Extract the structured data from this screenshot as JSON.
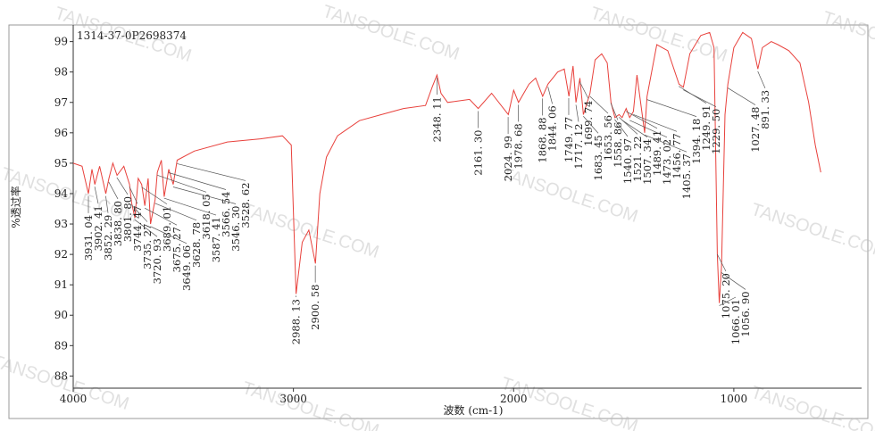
{
  "chart_data": {
    "type": "line",
    "title": "1314-37-0P2698374",
    "x_label": "波数 (cm-1)",
    "y_label": "%透过率",
    "watermark": "TANSOOLE.COM",
    "color": "#e8413c",
    "xlim": [
      4000,
      440
    ],
    "ylim": [
      87.6,
      99.4
    ],
    "xticks": [
      4000,
      3000,
      2000,
      1000
    ],
    "yticks": [
      88,
      89,
      90,
      91,
      92,
      93,
      94,
      95,
      96,
      97,
      98,
      99
    ],
    "x": [
      4000,
      3960,
      3931,
      3915,
      3902,
      3880,
      3852,
      3838,
      3820,
      3801,
      3770,
      3744,
      3735,
      3720,
      3705,
      3689,
      3675,
      3660,
      3649,
      3628,
      3618,
      3600,
      3587,
      3566,
      3546,
      3528,
      3450,
      3300,
      3150,
      3050,
      3010,
      2988,
      2960,
      2930,
      2900,
      2880,
      2850,
      2800,
      2700,
      2600,
      2500,
      2400,
      2370,
      2348,
      2330,
      2300,
      2200,
      2161,
      2100,
      2024,
      2000,
      1978,
      1930,
      1900,
      1868,
      1844,
      1800,
      1770,
      1749,
      1730,
      1717,
      1699,
      1683,
      1653,
      1630,
      1600,
      1575,
      1558,
      1540,
      1521,
      1507,
      1489,
      1473,
      1456,
      1440,
      1405,
      1394,
      1350,
      1300,
      1249,
      1229,
      1200,
      1150,
      1110,
      1090,
      1075,
      1066,
      1056,
      1040,
      1027,
      1000,
      960,
      920,
      891,
      870,
      830,
      800,
      750,
      700,
      660,
      630,
      605
    ],
    "values": [
      95.0,
      94.9,
      94.0,
      94.8,
      94.3,
      94.9,
      94.0,
      94.5,
      95.0,
      94.6,
      94.9,
      94.3,
      93.7,
      93.2,
      94.5,
      94.3,
      93.6,
      94.5,
      93.0,
      93.8,
      94.7,
      95.1,
      93.9,
      94.8,
      94.3,
      95.1,
      95.4,
      95.7,
      95.8,
      95.9,
      95.6,
      90.7,
      92.4,
      92.8,
      91.7,
      94.0,
      95.2,
      95.9,
      96.4,
      96.6,
      96.8,
      96.9,
      97.5,
      97.9,
      97.3,
      97.0,
      97.1,
      96.8,
      97.3,
      96.6,
      97.4,
      97.0,
      97.6,
      97.8,
      97.2,
      97.6,
      98.0,
      98.1,
      97.2,
      98.2,
      97.0,
      97.8,
      96.6,
      97.3,
      98.4,
      98.6,
      98.3,
      97.0,
      96.5,
      96.6,
      96.5,
      96.8,
      96.5,
      96.7,
      97.9,
      96.0,
      97.2,
      98.9,
      98.7,
      97.6,
      97.5,
      98.6,
      99.2,
      99.3,
      98.8,
      92.0,
      90.4,
      91.6,
      96.6,
      97.6,
      98.8,
      99.3,
      99.1,
      98.1,
      98.8,
      99.0,
      98.9,
      98.7,
      98.3,
      97.0,
      95.6,
      94.7
    ],
    "peak_labels": [
      {
        "value": 3931.04,
        "label": "3931. 04"
      },
      {
        "value": 3902.41,
        "label": "3902. 41"
      },
      {
        "value": 3852.29,
        "label": "3852. 29"
      },
      {
        "value": 3838.8,
        "label": "3838. 80"
      },
      {
        "value": 3801.8,
        "label": "3801. 80"
      },
      {
        "value": 3744.47,
        "label": "3744. 47"
      },
      {
        "value": 3735.27,
        "label": "3735. 27"
      },
      {
        "value": 3720.93,
        "label": "3720. 93"
      },
      {
        "value": 3689.01,
        "label": "3689. 01"
      },
      {
        "value": 3675.27,
        "label": "3675. 27"
      },
      {
        "value": 3649.06,
        "label": "3649. 06"
      },
      {
        "value": 3628.78,
        "label": "3628. 78"
      },
      {
        "value": 3618.05,
        "label": "3618. 05"
      },
      {
        "value": 3587.41,
        "label": "3587. 41"
      },
      {
        "value": 3566.54,
        "label": "3566. 54"
      },
      {
        "value": 3546.3,
        "label": "3546. 30"
      },
      {
        "value": 3528.62,
        "label": "3528. 62"
      },
      {
        "value": 2988.13,
        "label": "2988. 13"
      },
      {
        "value": 2900.58,
        "label": "2900. 58"
      },
      {
        "value": 2348.11,
        "label": "2348. 11"
      },
      {
        "value": 2161.3,
        "label": "2161. 30"
      },
      {
        "value": 2024.99,
        "label": "2024. 99"
      },
      {
        "value": 1978.68,
        "label": "1978. 68"
      },
      {
        "value": 1868.88,
        "label": "1868. 88"
      },
      {
        "value": 1844.06,
        "label": "1844. 06"
      },
      {
        "value": 1749.77,
        "label": "1749. 77"
      },
      {
        "value": 1717.12,
        "label": "1717. 12"
      },
      {
        "value": 1699.74,
        "label": "1699. 74"
      },
      {
        "value": 1683.45,
        "label": "1683. 45"
      },
      {
        "value": 1653.56,
        "label": "1653. 56"
      },
      {
        "value": 1558.86,
        "label": "1558. 86"
      },
      {
        "value": 1540.97,
        "label": "1540. 97"
      },
      {
        "value": 1521.22,
        "label": "1521. 22"
      },
      {
        "value": 1507.34,
        "label": "1507. 34"
      },
      {
        "value": 1489.41,
        "label": "1489. 41"
      },
      {
        "value": 1473.02,
        "label": "1473. 02"
      },
      {
        "value": 1456.77,
        "label": "1456. 77"
      },
      {
        "value": 1405.37,
        "label": "1405. 37"
      },
      {
        "value": 1394.18,
        "label": "1394. 18"
      },
      {
        "value": 1249.91,
        "label": "1249. 91"
      },
      {
        "value": 1229.5,
        "label": "1229. 50"
      },
      {
        "value": 1075.2,
        "label": "1075. 20"
      },
      {
        "value": 1066.01,
        "label": "1066. 01"
      },
      {
        "value": 1056.9,
        "label": "1056. 90"
      },
      {
        "value": 1027.48,
        "label": "1027. 48"
      },
      {
        "value": 891.33,
        "label": "891. 33"
      }
    ]
  }
}
